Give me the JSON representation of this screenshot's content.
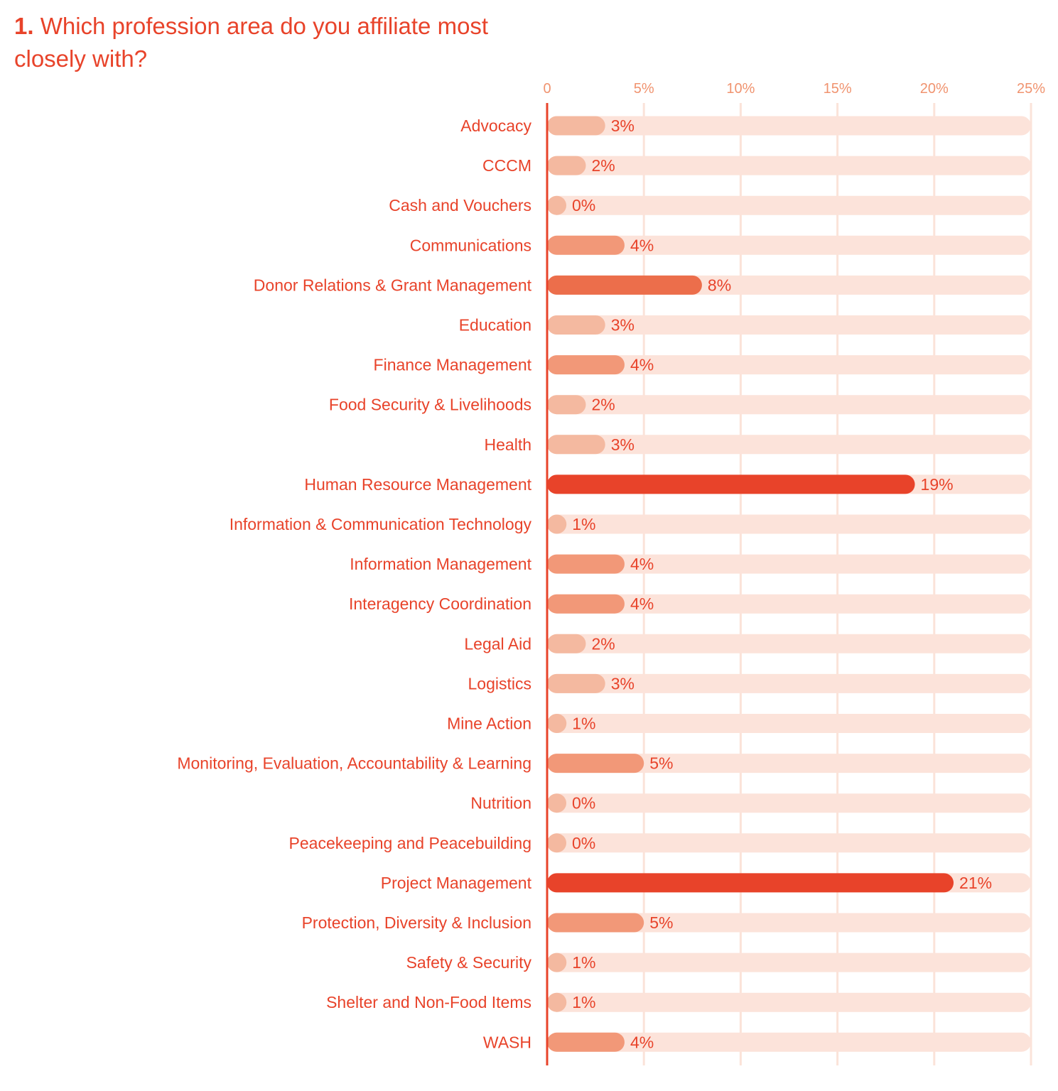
{
  "chart_data": {
    "type": "bar",
    "orientation": "horizontal",
    "title_number": "1.",
    "title": "Which profession area do you affiliate most closely with?",
    "xlabel": "",
    "ylabel": "",
    "xlim": [
      0,
      25
    ],
    "x_ticks": [
      "0",
      "5%",
      "10%",
      "15%",
      "20%",
      "25%"
    ],
    "x_tick_values": [
      0,
      5,
      10,
      15,
      20,
      25
    ],
    "grid": true,
    "categories": [
      "Advocacy",
      "CCCM",
      "Cash and Vouchers",
      "Communications",
      "Donor Relations & Grant Management",
      "Education",
      "Finance Management",
      "Food Security & Livelihoods",
      "Health",
      "Human Resource Management",
      "Information & Communication Technology",
      "Information Management",
      "Interagency Coordination",
      "Legal Aid",
      "Logistics",
      "Mine Action",
      "Monitoring, Evaluation, Accountability & Learning",
      "Nutrition",
      "Peacekeeping and Peacebuilding",
      "Project Management",
      "Protection, Diversity & Inclusion",
      "Safety & Security",
      "Shelter and Non-Food Items",
      "WASH"
    ],
    "values": [
      3,
      2,
      0,
      4,
      8,
      3,
      4,
      2,
      3,
      19,
      1,
      4,
      4,
      2,
      3,
      1,
      5,
      0,
      0,
      21,
      5,
      1,
      1,
      4
    ],
    "value_labels": [
      "3%",
      "2%",
      "0%",
      "4%",
      "8%",
      "3%",
      "4%",
      "2%",
      "3%",
      "19%",
      "1%",
      "4%",
      "4%",
      "2%",
      "3%",
      "1%",
      "5%",
      "0%",
      "0%",
      "21%",
      "5%",
      "1%",
      "1%",
      "4%"
    ]
  },
  "colors": {
    "title": "#e8432a",
    "axis_line": "#e8432a",
    "gridline": "#fbe3d9",
    "track": "#fce3da",
    "tick_label": "#f0936f",
    "bar_low": "#f4b9a0",
    "bar_mid": "#f29878",
    "bar_8": "#ec6e4b",
    "bar_high": "#e8432a"
  }
}
